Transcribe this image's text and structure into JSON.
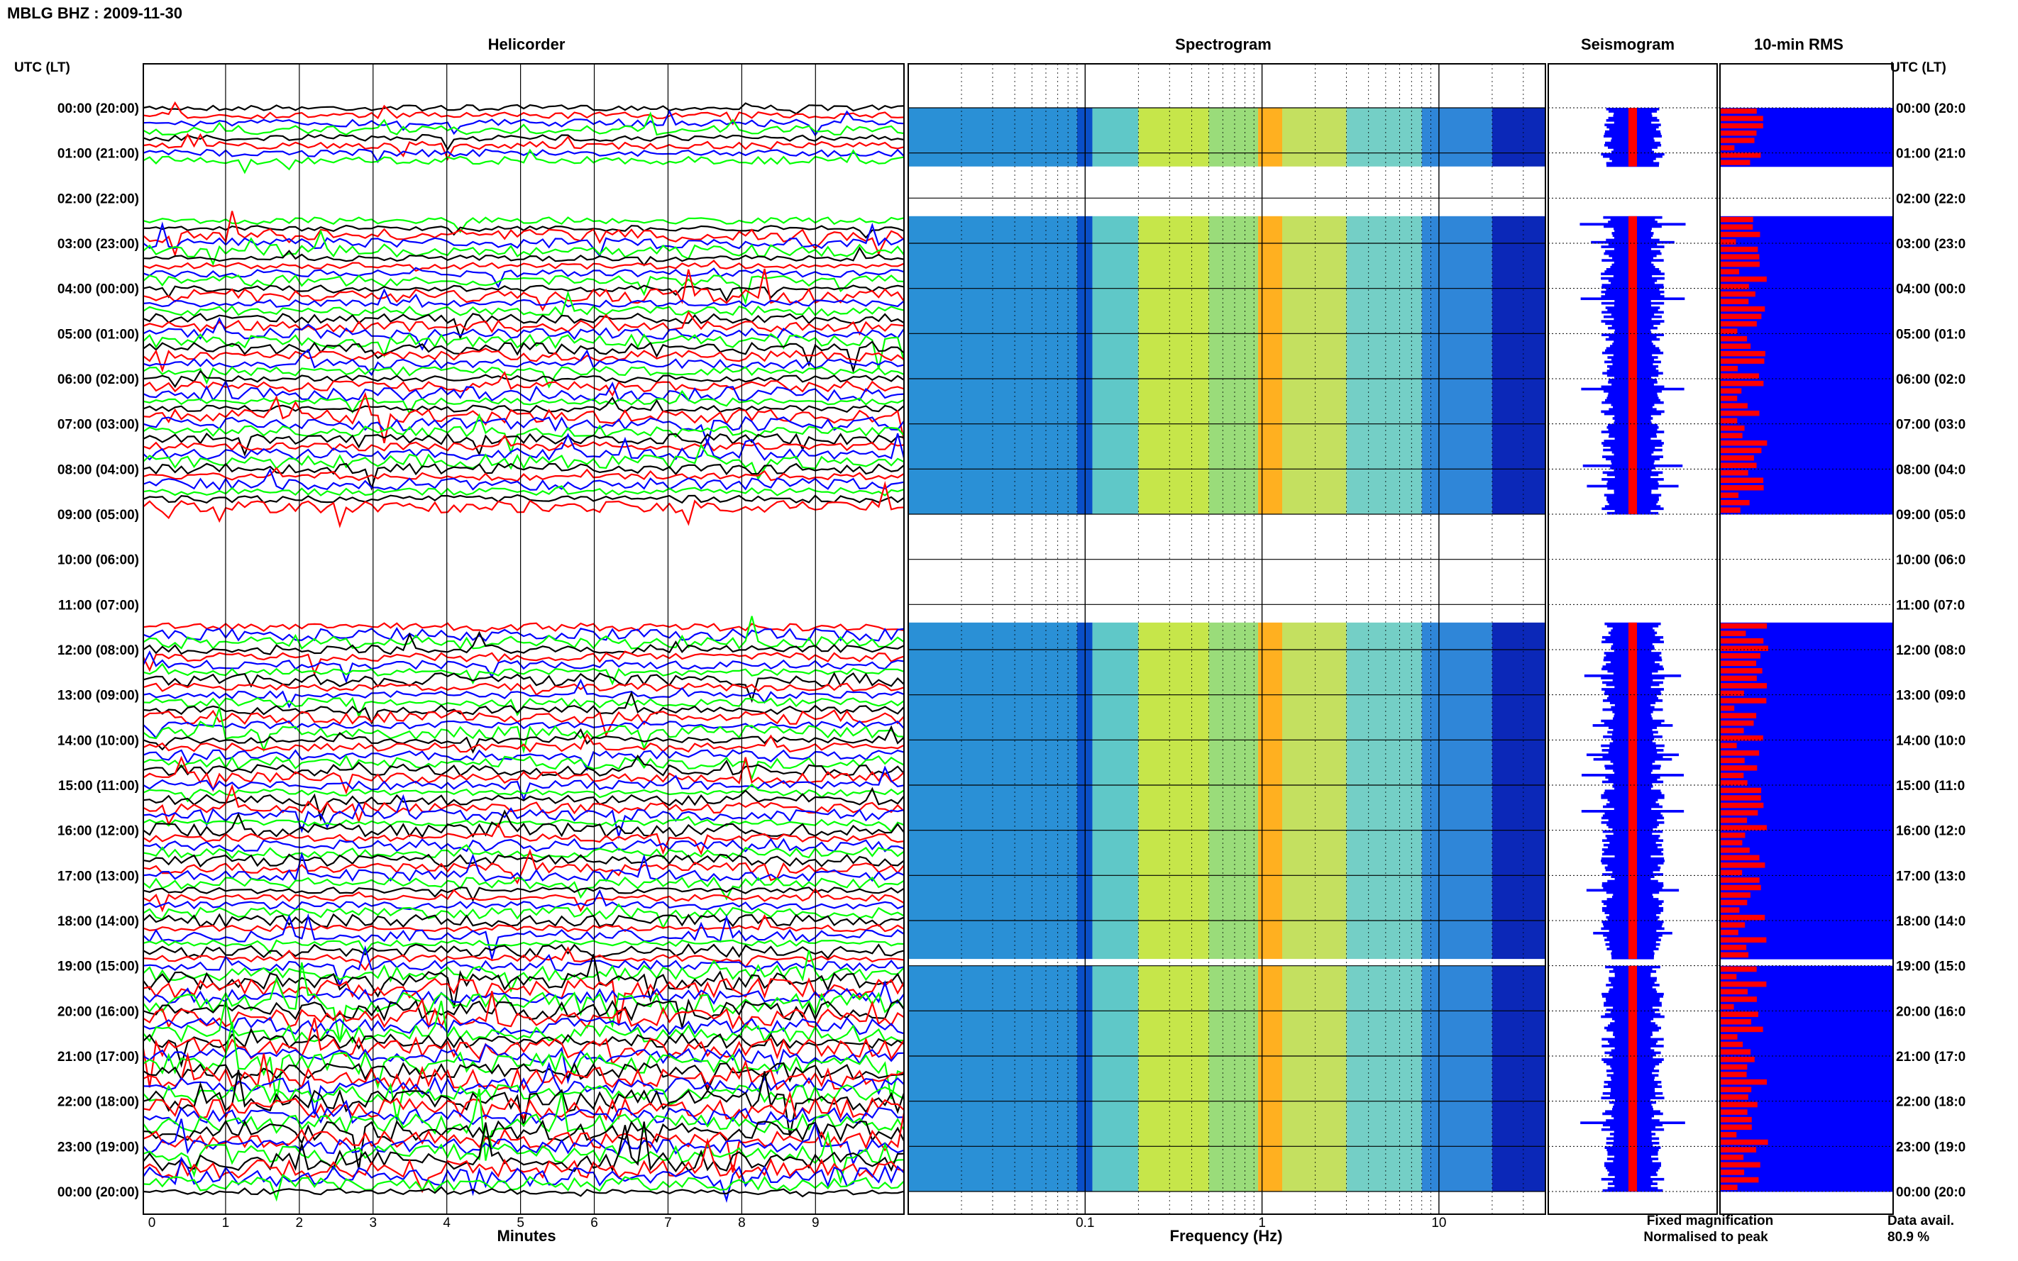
{
  "header": {
    "station_title": "MBLG BHZ : 2009-11-30"
  },
  "axis": {
    "utc_lt_label": "UTC (LT)"
  },
  "panels": {
    "helicorder": "Helicorder",
    "spectrogram": "Spectrogram",
    "seismogram": "Seismogram",
    "rms": "10-min RMS"
  },
  "footer": {
    "minutes_label": "Minutes",
    "frequency_label": "Frequency (Hz)",
    "fixed_magnification": "Fixed magnification",
    "normalised_to_peak": "Normalised to peak",
    "data_avail_label": "Data avail.",
    "data_avail_value": "80.9 %"
  },
  "colors": {
    "trace_cycle": [
      "#000000",
      "#ff0000",
      "#0000ff",
      "#00ff00"
    ],
    "fixed": "#0000ff",
    "normalised": "#ff0000"
  },
  "chart_data": {
    "type": "helicorder",
    "date": "2009-11-30",
    "time_labels": [
      "00:00 (20:00)",
      "01:00 (21:00)",
      "02:00 (22:00)",
      "03:00 (23:00)",
      "04:00 (00:00)",
      "05:00 (01:00)",
      "06:00 (02:00)",
      "07:00 (03:00)",
      "08:00 (04:00)",
      "09:00 (05:00)",
      "10:00 (06:00)",
      "11:00 (07:00)",
      "12:00 (08:00)",
      "13:00 (09:00)",
      "14:00 (10:00)",
      "15:00 (11:00)",
      "16:00 (12:00)",
      "17:00 (13:00)",
      "18:00 (14:00)",
      "19:00 (15:00)",
      "20:00 (16:00)",
      "21:00 (17:00)",
      "22:00 (18:00)",
      "23:00 (19:00)",
      "00:00 (20:00)"
    ],
    "right_time_labels": [
      "00:00 (20:0",
      "01:00 (21:0",
      "02:00 (22:0",
      "03:00 (23:0",
      "04:00 (00:0",
      "05:00 (01:0",
      "06:00 (02:0",
      "07:00 (03:0",
      "08:00 (04:0",
      "09:00 (05:0",
      "10:00 (06:0",
      "11:00 (07:0",
      "12:00 (08:0",
      "13:00 (09:0",
      "14:00 (10:0",
      "15:00 (11:0",
      "16:00 (12:0",
      "17:00 (13:0",
      "18:00 (14:0",
      "19:00 (15:0",
      "20:00 (16:0",
      "21:00 (17:0",
      "22:00 (18:0",
      "23:00 (19:0",
      "00:00 (20:0"
    ],
    "minutes_ticks": [
      "0",
      "1",
      "2",
      "3",
      "4",
      "5",
      "6",
      "7",
      "8",
      "9"
    ],
    "frequency_ticks": [
      "0.1",
      "1",
      "10"
    ],
    "frequency_range_hz": [
      0.01,
      40
    ],
    "data_gaps_hours": [
      [
        1.3,
        2.4
      ],
      [
        9.0,
        11.4
      ],
      [
        18.85,
        19.0
      ]
    ],
    "data_availability_percent": 80.9
  }
}
